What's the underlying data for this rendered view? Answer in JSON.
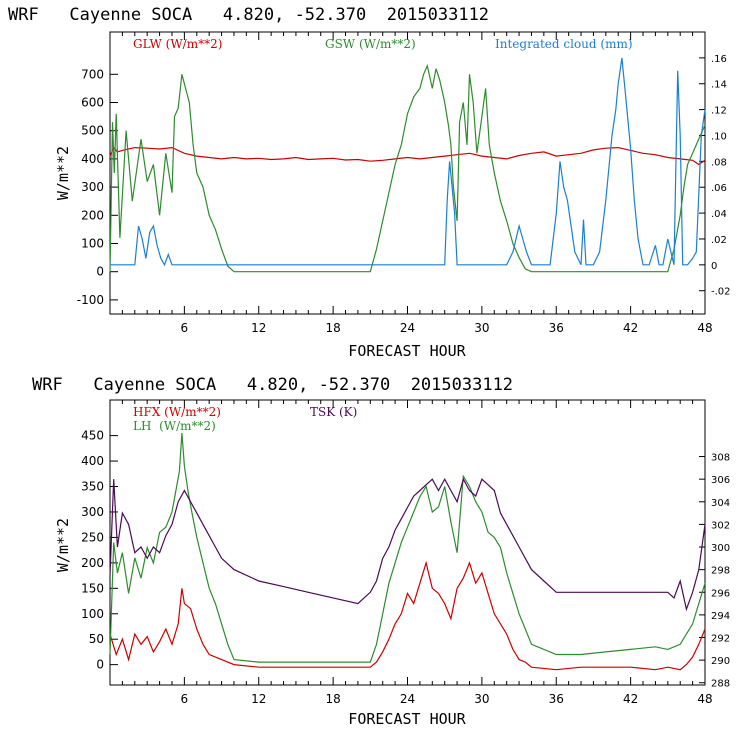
{
  "colors": {
    "red": "#cc0000",
    "green": "#2e8b2e",
    "blue": "#1a7fd4",
    "purple": "#4b0a55",
    "black": "#000000"
  },
  "chart_data": [
    {
      "type": "line",
      "title": "WRF   Cayenne SOCA   4.820, -52.370  2015033112",
      "xlabel": "FORECAST HOUR",
      "ylabel": "W/m**2",
      "xlim": [
        0,
        48
      ],
      "ylim": [
        -150,
        850
      ],
      "xticks": [
        6,
        12,
        18,
        24,
        30,
        36,
        42,
        48
      ],
      "xtick_labels": [
        "6",
        "12",
        "18",
        "24",
        "30",
        "36",
        "42",
        "48"
      ],
      "yticks": [
        -100,
        0,
        100,
        200,
        300,
        400,
        500,
        600,
        700
      ],
      "ytick_labels": [
        "-100",
        "0",
        "100",
        "200",
        "300",
        "400",
        "500",
        "600",
        "700"
      ],
      "y2lim": [
        -0.038,
        0.18
      ],
      "y2ticks": [
        -0.02,
        0,
        0.02,
        0.04,
        0.06,
        0.08,
        0.1,
        0.12,
        0.14,
        0.16
      ],
      "y2tick_labels": [
        "-.02",
        "0",
        ".02",
        ".04",
        ".06",
        ".08",
        ".10",
        ".12",
        ".14",
        ".16"
      ],
      "legend": [
        {
          "label": "GLW (W/m**2)",
          "color": "red",
          "pos": "top-left"
        },
        {
          "label": "GSW (W/m**2)",
          "color": "green",
          "pos": "top-center"
        },
        {
          "label": "Integrated cloud (mm)",
          "color": "blue",
          "pos": "top-right"
        }
      ],
      "series": [
        {
          "name": "GLW (W/m**2)",
          "color": "red",
          "axis": "left",
          "x": [
            0,
            0.3,
            0.6,
            1,
            2,
            3,
            4,
            5,
            6,
            7,
            8,
            9,
            10,
            11,
            12,
            13,
            14,
            15,
            16,
            17,
            18,
            19,
            20,
            21,
            22,
            23,
            24,
            25,
            26,
            27,
            28,
            29,
            30,
            31,
            32,
            33,
            34,
            35,
            36,
            37,
            38,
            39,
            40,
            41,
            42,
            43,
            44,
            45,
            46,
            47,
            47.5,
            48
          ],
          "y": [
            410,
            440,
            425,
            430,
            440,
            438,
            435,
            440,
            420,
            410,
            405,
            400,
            405,
            400,
            402,
            398,
            400,
            405,
            398,
            400,
            402,
            396,
            398,
            392,
            395,
            400,
            405,
            400,
            405,
            410,
            415,
            420,
            410,
            405,
            400,
            412,
            420,
            425,
            410,
            415,
            420,
            432,
            438,
            440,
            430,
            420,
            415,
            405,
            400,
            395,
            380,
            395
          ]
        },
        {
          "name": "GSW (W/m**2)",
          "color": "green",
          "axis": "left",
          "x": [
            0,
            0.2,
            0.35,
            0.5,
            0.8,
            1.3,
            1.8,
            2.5,
            3,
            3.5,
            4,
            4.5,
            5,
            5.2,
            5.5,
            5.8,
            6.1,
            6.4,
            6.7,
            7,
            7.5,
            8,
            8.5,
            9,
            9.5,
            10,
            21,
            21.5,
            22,
            22.5,
            23,
            23.5,
            24,
            24.5,
            25,
            25.3,
            25.6,
            26,
            26.3,
            26.6,
            27,
            27.3,
            27.5,
            27.7,
            28,
            28.2,
            28.5,
            28.8,
            29,
            29.3,
            29.6,
            30,
            30.3,
            30.6,
            31,
            31.5,
            32,
            32.5,
            33,
            33.5,
            34,
            34.5,
            45,
            45.5,
            46,
            46.3,
            46.6,
            47,
            47.3,
            47.6,
            48
          ],
          "y": [
            0,
            530,
            350,
            560,
            120,
            500,
            250,
            470,
            320,
            380,
            200,
            420,
            280,
            550,
            580,
            700,
            650,
            600,
            450,
            350,
            300,
            200,
            150,
            80,
            20,
            0,
            0,
            80,
            180,
            280,
            380,
            450,
            560,
            620,
            650,
            700,
            730,
            650,
            720,
            680,
            600,
            520,
            450,
            300,
            180,
            530,
            600,
            450,
            700,
            600,
            420,
            550,
            650,
            450,
            350,
            250,
            180,
            100,
            50,
            10,
            0,
            0,
            0,
            80,
            200,
            300,
            380,
            420,
            450,
            480,
            520
          ]
        },
        {
          "name": "Integrated cloud (mm)",
          "color": "blue",
          "axis": "right",
          "x": [
            0,
            2,
            2.3,
            2.6,
            2.9,
            3.2,
            3.5,
            3.8,
            4.1,
            4.4,
            4.7,
            5,
            26,
            27,
            27.2,
            27.4,
            27.6,
            27.8,
            28,
            29,
            32,
            32.5,
            33,
            33.3,
            33.6,
            34,
            35.5,
            36,
            36.3,
            36.6,
            36.9,
            37.2,
            37.5,
            38,
            38.2,
            38.4,
            39,
            39.5,
            40,
            40.5,
            40.8,
            41,
            41.3,
            41.6,
            42,
            42.3,
            42.6,
            43,
            43.5,
            44,
            44.3,
            44.6,
            45,
            45.5,
            45.8,
            46,
            46.2,
            46.6,
            47,
            47.3,
            47.7,
            48
          ],
          "y": [
            0,
            0,
            0.03,
            0.02,
            0.005,
            0.025,
            0.03,
            0.015,
            0.005,
            0,
            0.008,
            0,
            0,
            0,
            0.05,
            0.08,
            0.06,
            0.04,
            0,
            0,
            0,
            0.01,
            0.03,
            0.02,
            0.01,
            0,
            0,
            0.04,
            0.08,
            0.06,
            0.05,
            0.03,
            0.01,
            0,
            0.035,
            0,
            0,
            0.01,
            0.05,
            0.1,
            0.12,
            0.14,
            0.16,
            0.13,
            0.09,
            0.05,
            0.02,
            0,
            0,
            0.015,
            0,
            0,
            0.02,
            0,
            0.15,
            0.1,
            0,
            0,
            0.005,
            0.01,
            0.1,
            0.12
          ]
        }
      ]
    },
    {
      "type": "line",
      "title": "WRF   Cayenne SOCA   4.820, -52.370  2015033112",
      "xlabel": "FORECAST HOUR",
      "ylabel": "W/m**2",
      "xlim": [
        0,
        48
      ],
      "ylim": [
        -40,
        520
      ],
      "xticks": [
        6,
        12,
        18,
        24,
        30,
        36,
        42,
        48
      ],
      "xtick_labels": [
        "6",
        "12",
        "18",
        "24",
        "30",
        "36",
        "42",
        "48"
      ],
      "yticks": [
        0,
        50,
        100,
        150,
        200,
        250,
        300,
        350,
        400,
        450
      ],
      "ytick_labels": [
        "0",
        "50",
        "100",
        "150",
        "200",
        "250",
        "300",
        "350",
        "400",
        "450"
      ],
      "y2lim": [
        287.8,
        313
      ],
      "y2ticks": [
        288,
        290,
        292,
        294,
        296,
        298,
        300,
        302,
        304,
        306,
        308
      ],
      "y2tick_labels": [
        "288",
        "290",
        "292",
        "294",
        "296",
        "298",
        "300",
        "302",
        "304",
        "306",
        "308"
      ],
      "legend": [
        {
          "label": "HFX (W/m**2)",
          "color": "red",
          "pos": "top-left"
        },
        {
          "label": "LH  (W/m**2)",
          "color": "green",
          "pos": "top-left-second-line"
        },
        {
          "label": "TSK (K)",
          "color": "purple",
          "pos": "top-center"
        }
      ],
      "series": [
        {
          "name": "HFX (W/m**2)",
          "color": "red",
          "axis": "left",
          "x": [
            0,
            0.5,
            1,
            1.5,
            2,
            2.5,
            3,
            3.5,
            4,
            4.5,
            5,
            5.5,
            5.8,
            6,
            6.5,
            7,
            7.5,
            8,
            9,
            10,
            12,
            14,
            16,
            18,
            20,
            21,
            21.5,
            22,
            22.5,
            23,
            23.5,
            24,
            24.5,
            25,
            25.5,
            26,
            26.5,
            27,
            27.5,
            28,
            28.5,
            29,
            29.5,
            30,
            30.5,
            31,
            31.5,
            32,
            32.5,
            33,
            33.5,
            34,
            36,
            38,
            40,
            42,
            44,
            45,
            46,
            46.5,
            47,
            47.5,
            48
          ],
          "y": [
            60,
            20,
            50,
            10,
            60,
            40,
            55,
            25,
            45,
            70,
            40,
            80,
            150,
            120,
            110,
            70,
            40,
            20,
            10,
            0,
            -5,
            -5,
            -5,
            -5,
            -5,
            -5,
            5,
            25,
            50,
            80,
            100,
            140,
            120,
            160,
            200,
            150,
            140,
            120,
            90,
            150,
            170,
            200,
            160,
            180,
            140,
            100,
            80,
            60,
            30,
            10,
            5,
            -5,
            -10,
            -5,
            -5,
            -5,
            -10,
            -5,
            -10,
            0,
            15,
            40,
            70
          ]
        },
        {
          "name": "LH  (W/m**2)",
          "color": "green",
          "axis": "left",
          "x": [
            0,
            0.3,
            0.6,
            1,
            1.5,
            2,
            2.5,
            3,
            3.5,
            4,
            4.5,
            5,
            5.3,
            5.6,
            5.8,
            6,
            6.3,
            6.6,
            7,
            7.5,
            8,
            8.5,
            9,
            9.5,
            10,
            12,
            14,
            16,
            18,
            20,
            21,
            21.5,
            22,
            22.5,
            23,
            23.5,
            24,
            24.5,
            25,
            25.5,
            26,
            26.5,
            27,
            27.5,
            28,
            28.5,
            29,
            29.5,
            30,
            30.5,
            31,
            31.5,
            32,
            32.5,
            33,
            33.5,
            34,
            36,
            38,
            40,
            42,
            44,
            45,
            46,
            46.5,
            47,
            47.5,
            48
          ],
          "y": [
            20,
            240,
            180,
            220,
            140,
            210,
            170,
            230,
            200,
            260,
            270,
            300,
            340,
            380,
            455,
            390,
            340,
            300,
            250,
            200,
            150,
            120,
            80,
            40,
            10,
            5,
            5,
            5,
            5,
            5,
            5,
            40,
            100,
            160,
            200,
            240,
            270,
            300,
            330,
            350,
            300,
            310,
            350,
            280,
            220,
            370,
            350,
            320,
            300,
            260,
            250,
            230,
            180,
            140,
            100,
            70,
            40,
            20,
            20,
            25,
            30,
            35,
            30,
            40,
            60,
            80,
            120,
            160
          ]
        },
        {
          "name": "TSK (K)",
          "color": "purple",
          "axis": "right",
          "x": [
            0,
            0.3,
            0.6,
            1,
            1.5,
            2,
            2.5,
            3,
            3.5,
            4,
            4.5,
            5,
            5.5,
            6,
            6.5,
            7,
            7.5,
            8,
            8.5,
            9,
            10,
            12,
            14,
            16,
            18,
            20,
            21,
            21.5,
            22,
            22.5,
            23,
            23.5,
            24,
            24.5,
            25,
            25.5,
            26,
            26.5,
            27,
            27.5,
            28,
            28.5,
            29,
            29.5,
            30,
            30.5,
            31,
            31.5,
            32,
            32.5,
            33,
            33.5,
            34,
            35,
            36,
            38,
            40,
            42,
            44,
            45,
            45.5,
            46,
            46.5,
            47,
            47.5,
            48
          ],
          "y": [
            297.5,
            306,
            300,
            303,
            302,
            299.5,
            300,
            299,
            300,
            299.5,
            301,
            302,
            304,
            305,
            304,
            303,
            302,
            301,
            300,
            299,
            298,
            297,
            296.5,
            296,
            295.5,
            295,
            296,
            297,
            299,
            300,
            301.5,
            302.5,
            303.5,
            304.5,
            305,
            305.5,
            306,
            305,
            306,
            305,
            304,
            306,
            305,
            304.5,
            306,
            305.5,
            305,
            303,
            302,
            301,
            300,
            299,
            298,
            297,
            296,
            296,
            296,
            296,
            296,
            296,
            295.5,
            297,
            294.5,
            296,
            298,
            302
          ]
        }
      ]
    }
  ]
}
